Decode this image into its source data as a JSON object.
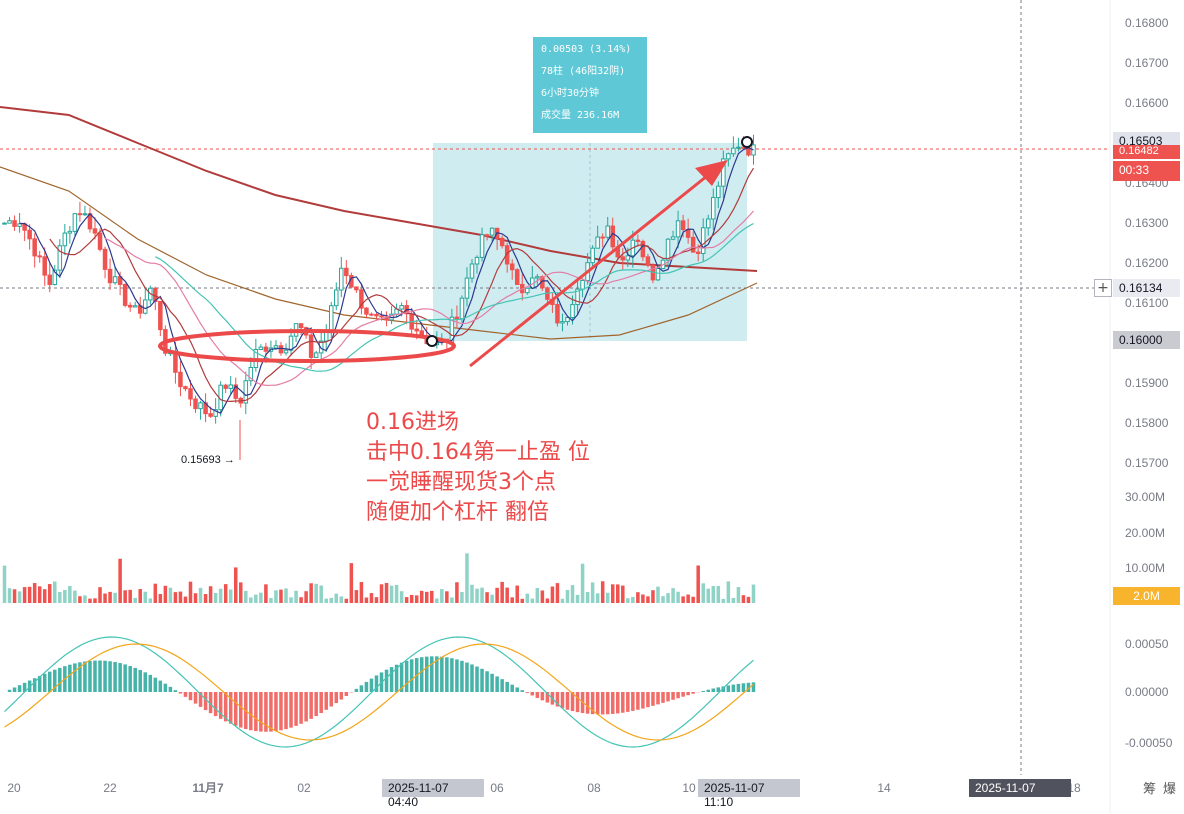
{
  "colors": {
    "up": "#26a69a",
    "up_fill": "#8fd3c6",
    "down": "#ef5350",
    "ma_long": "#b23b3b",
    "ma_mid": "#a0662e",
    "ma_cyan": "#44c4b4",
    "ma_pink": "#e47da6",
    "range_fill": "#bfe6ec",
    "annotation": "#ec4a4a",
    "info_box": "#5ec8d6"
  },
  "info_box": {
    "line1": "0.00503 (3.14%)",
    "line2": "78柱 (46阳32阴)",
    "line3": "6小时30分钟",
    "line4": "成交量 236.16M"
  },
  "annotation": {
    "line1": "0.16进场",
    "line2": "击中0.164第一止盈 位",
    "line3": "一觉睡醒现货3个点",
    "line4": "随便加个杠杆 翻倍"
  },
  "low_label": "0.15693 →",
  "price_tags": {
    "high": "0.16503",
    "current": "0.16482",
    "countdown": "00:33",
    "cursor": "0.16134",
    "low": "0.16000",
    "volume": "2.0M"
  },
  "bottom_labels": {
    "start_time": "2025-11-07 04:40",
    "end_time": "2025-11-07 11:10",
    "cursor_time": "2025-11-07 16:50",
    "right1": "筹",
    "right2": "爆"
  },
  "chart_data": {
    "type": "candlestick",
    "price_axis": {
      "ticks": [
        "0.16800",
        "0.16700",
        "0.16600",
        "0.16500",
        "0.16400",
        "0.16300",
        "0.16200",
        "0.16100",
        "0.16000",
        "0.15900",
        "0.15800",
        "0.15700"
      ],
      "range": [
        0.1565,
        0.1685
      ]
    },
    "volume_axis": {
      "ticks": [
        "30.00M",
        "20.00M",
        "10.00M"
      ]
    },
    "macd_axis": {
      "ticks": [
        "0.00050",
        "0.00000",
        "-0.00050"
      ]
    },
    "x_axis": {
      "ticks": [
        "20",
        "22",
        "11月7",
        "02",
        "06",
        "08",
        "10",
        "14",
        "18"
      ]
    },
    "measured_range": {
      "start_price": 0.16,
      "end_price": 0.16503,
      "change": "0.00503",
      "percent": "3.14%",
      "bars": 78
    },
    "marked_low": 0.15693,
    "price_waypoints": [
      [
        0.163,
        0.1631,
        0.1624,
        0.1614,
        0.1626,
        0.1634,
        0.1629,
        0.1618,
        0.1612,
        0.1607,
        0.1614,
        0.1598,
        0.159,
        0.1585,
        0.1582,
        0.159,
        0.1585,
        0.1597,
        0.16,
        0.1599,
        0.1605,
        0.1596,
        0.1604,
        0.162,
        0.1612,
        0.1606,
        0.1604,
        0.1609,
        0.1604,
        0.16
      ]
    ],
    "price_waypoints_2": [
      [
        0.16,
        0.161,
        0.1622,
        0.1628,
        0.1624,
        0.1612,
        0.1618,
        0.161,
        0.1604,
        0.1615,
        0.1622,
        0.163,
        0.162,
        0.1628,
        0.1616,
        0.1624,
        0.1632,
        0.1622,
        0.1632,
        0.1645,
        0.165,
        0.1648
      ]
    ],
    "ma_long": [
      0.1659,
      0.1657,
      0.165,
      0.1643,
      0.1637,
      0.1633,
      0.163,
      0.1627,
      0.1623,
      0.162,
      0.1619,
      0.1618
    ],
    "ma_mid": [
      0.1644,
      0.1638,
      0.1626,
      0.1617,
      0.1611,
      0.1607,
      0.1605,
      0.1603,
      0.1601,
      0.1602,
      0.1607,
      0.1615
    ]
  }
}
